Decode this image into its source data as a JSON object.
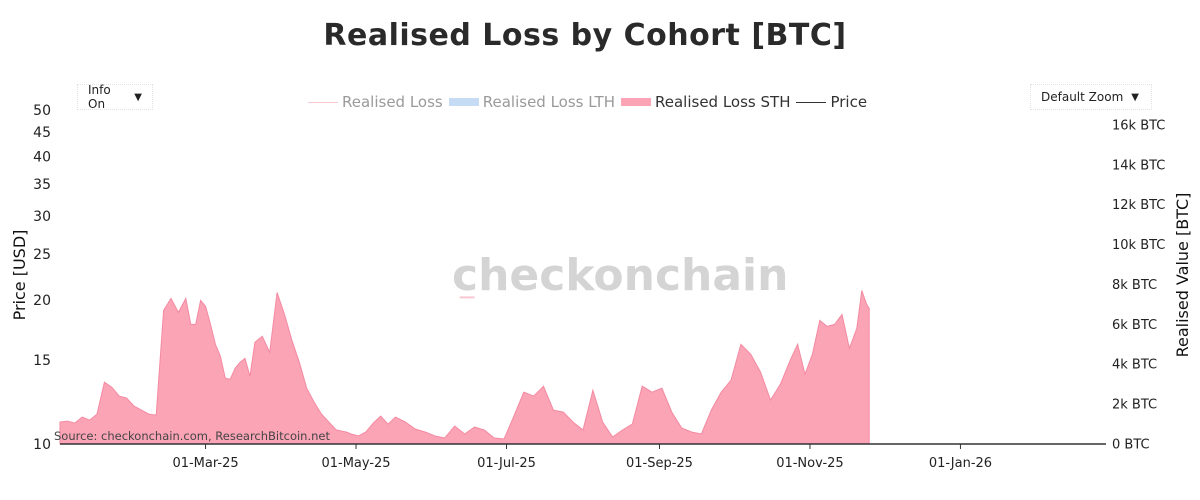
{
  "chart_data": {
    "type": "area",
    "title": "Realised Loss by Cohort [BTC]",
    "watermark": "checkonchain",
    "source": "Source: checkonchain.com, ResearchBitcoin.net",
    "controls": {
      "info_label": "Info On",
      "zoom_label": "Default Zoom"
    },
    "colors": {
      "sth": "#fba4b6",
      "sth_line": "#f48aa2",
      "lth": "#c6dcf5",
      "loss": "#f8c8d2",
      "price": "#333333"
    },
    "legend": [
      {
        "name": "Realised Loss",
        "style": "line",
        "color": "#f8c8d2",
        "active": false
      },
      {
        "name": "Realised Loss LTH",
        "style": "box",
        "color": "#c6dcf5",
        "active": false
      },
      {
        "name": "Realised Loss STH",
        "style": "box",
        "color": "#fba4b6",
        "active": true
      },
      {
        "name": "Price",
        "style": "line",
        "color": "#333333",
        "active": true
      }
    ],
    "x_axis": {
      "range": [
        "2025-01-01",
        "2026-03-01"
      ],
      "ticks": [
        {
          "date": "2025-03-01",
          "label": "01-Mar-25"
        },
        {
          "date": "2025-05-01",
          "label": "01-May-25"
        },
        {
          "date": "2025-07-01",
          "label": "01-Jul-25"
        },
        {
          "date": "2025-09-01",
          "label": "01-Sep-25"
        },
        {
          "date": "2025-11-01",
          "label": "01-Nov-25"
        },
        {
          "date": "2026-01-01",
          "label": "01-Jan-26"
        }
      ]
    },
    "y_left": {
      "title": "Price [USD]",
      "scale": "log",
      "range": [
        10,
        50
      ],
      "ticks": [
        {
          "value": 10,
          "label": "10"
        },
        {
          "value": 15,
          "label": "15"
        },
        {
          "value": 20,
          "label": "20"
        },
        {
          "value": 25,
          "label": "25"
        },
        {
          "value": 30,
          "label": "30"
        },
        {
          "value": 35,
          "label": "35"
        },
        {
          "value": 40,
          "label": "40"
        },
        {
          "value": 45,
          "label": "45"
        },
        {
          "value": 50,
          "label": "50"
        }
      ]
    },
    "y_right": {
      "title": "Realised Value [BTC]",
      "scale": "linear",
      "range": [
        0,
        16500
      ],
      "ticks": [
        {
          "value": 0,
          "label": "0 BTC"
        },
        {
          "value": 2000,
          "label": "2k BTC"
        },
        {
          "value": 4000,
          "label": "4k BTC"
        },
        {
          "value": 6000,
          "label": "6k BTC"
        },
        {
          "value": 8000,
          "label": "8k BTC"
        },
        {
          "value": 10000,
          "label": "10k BTC"
        },
        {
          "value": 12000,
          "label": "12k BTC"
        },
        {
          "value": 14000,
          "label": "14k BTC"
        },
        {
          "value": 16000,
          "label": "16k BTC"
        }
      ]
    },
    "series": [
      {
        "name": "Realised Loss STH",
        "type": "area",
        "x": [
          "2025-01-01",
          "2025-01-04",
          "2025-01-07",
          "2025-01-10",
          "2025-01-13",
          "2025-01-16",
          "2025-01-19",
          "2025-01-22",
          "2025-01-25",
          "2025-01-28",
          "2025-01-31",
          "2025-02-03",
          "2025-02-06",
          "2025-02-09",
          "2025-02-12",
          "2025-02-15",
          "2025-02-18",
          "2025-02-21",
          "2025-02-23",
          "2025-02-25",
          "2025-02-27",
          "2025-03-01",
          "2025-03-03",
          "2025-03-05",
          "2025-03-07",
          "2025-03-09",
          "2025-03-11",
          "2025-03-13",
          "2025-03-15",
          "2025-03-17",
          "2025-03-19",
          "2025-03-21",
          "2025-03-24",
          "2025-03-27",
          "2025-03-30",
          "2025-04-02",
          "2025-04-05",
          "2025-04-08",
          "2025-04-11",
          "2025-04-14",
          "2025-04-17",
          "2025-04-20",
          "2025-04-23",
          "2025-04-25",
          "2025-04-27",
          "2025-04-29",
          "2025-05-02",
          "2025-05-05",
          "2025-05-08",
          "2025-05-11",
          "2025-05-14",
          "2025-05-17",
          "2025-05-21",
          "2025-05-25",
          "2025-05-29",
          "2025-06-02",
          "2025-06-06",
          "2025-06-10",
          "2025-06-14",
          "2025-06-18",
          "2025-06-22",
          "2025-06-26",
          "2025-06-30",
          "2025-07-04",
          "2025-07-08",
          "2025-07-12",
          "2025-07-16",
          "2025-07-20",
          "2025-07-24",
          "2025-07-28",
          "2025-08-01",
          "2025-08-05",
          "2025-08-09",
          "2025-08-13",
          "2025-08-17",
          "2025-08-21",
          "2025-08-25",
          "2025-08-29",
          "2025-09-02",
          "2025-09-06",
          "2025-09-10",
          "2025-09-14",
          "2025-09-18",
          "2025-09-22",
          "2025-09-26",
          "2025-09-30",
          "2025-10-04",
          "2025-10-08",
          "2025-10-12",
          "2025-10-16",
          "2025-10-20",
          "2025-10-24",
          "2025-10-27",
          "2025-10-30",
          "2025-11-02",
          "2025-11-05",
          "2025-11-08",
          "2025-11-11",
          "2025-11-14",
          "2025-11-17",
          "2025-11-20",
          "2025-11-22",
          "2025-11-24",
          "2025-11-25"
        ],
        "values": [
          1100,
          1150,
          1050,
          1350,
          1200,
          1500,
          3100,
          2850,
          2400,
          2300,
          1900,
          1700,
          1500,
          1450,
          6700,
          7300,
          6600,
          7300,
          6000,
          6000,
          7200,
          6900,
          6000,
          5000,
          4400,
          3300,
          3250,
          3800,
          4100,
          4300,
          3400,
          5100,
          5400,
          4600,
          7600,
          6500,
          5200,
          4100,
          2800,
          2100,
          1500,
          1100,
          700,
          650,
          600,
          500,
          400,
          600,
          1050,
          1400,
          1000,
          1350,
          1100,
          750,
          600,
          400,
          300,
          900,
          500,
          850,
          700,
          300,
          250,
          1400,
          2600,
          2400,
          2900,
          1700,
          1600,
          1100,
          700,
          2700,
          1100,
          350,
          700,
          1000,
          2900,
          2600,
          2800,
          1600,
          800,
          600,
          500,
          1700,
          2600,
          3200,
          5000,
          4500,
          3600,
          2200,
          3000,
          4200,
          5000,
          3500,
          4500,
          6200,
          5900,
          6000,
          6500,
          4800,
          5800,
          7700,
          7000,
          6800
        ]
      },
      {
        "name": "Realised Loss",
        "type": "line",
        "x": [
          "2025-06-12",
          "2025-06-18"
        ],
        "values": [
          7350,
          7350
        ]
      }
    ]
  }
}
